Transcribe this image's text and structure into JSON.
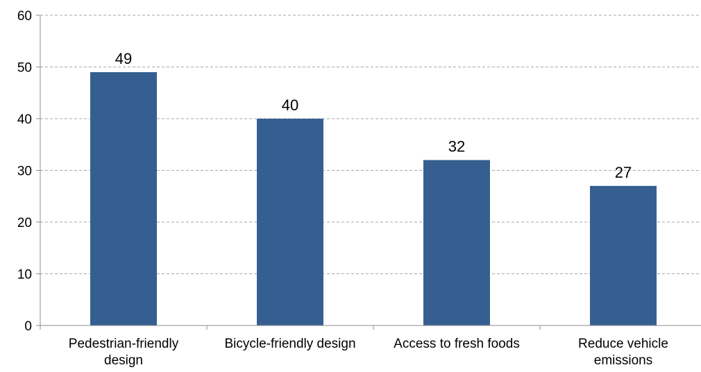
{
  "chart_data": {
    "type": "bar",
    "title": "",
    "xlabel": "",
    "ylabel": "",
    "categories": [
      [
        "Pedestrian-friendly",
        "design"
      ],
      [
        "Bicycle-friendly design"
      ],
      [
        "Access to fresh foods"
      ],
      [
        "Reduce vehicle",
        "emissions"
      ]
    ],
    "values": [
      49,
      40,
      32,
      27
    ],
    "ylim": [
      0,
      60
    ],
    "yticks": [
      0,
      10,
      20,
      30,
      40,
      50,
      60
    ],
    "grid": true,
    "legend": "none",
    "bar_color": "#365F91",
    "grid_color": "#A6A6A6",
    "axis_color": "#8C8C8C"
  }
}
